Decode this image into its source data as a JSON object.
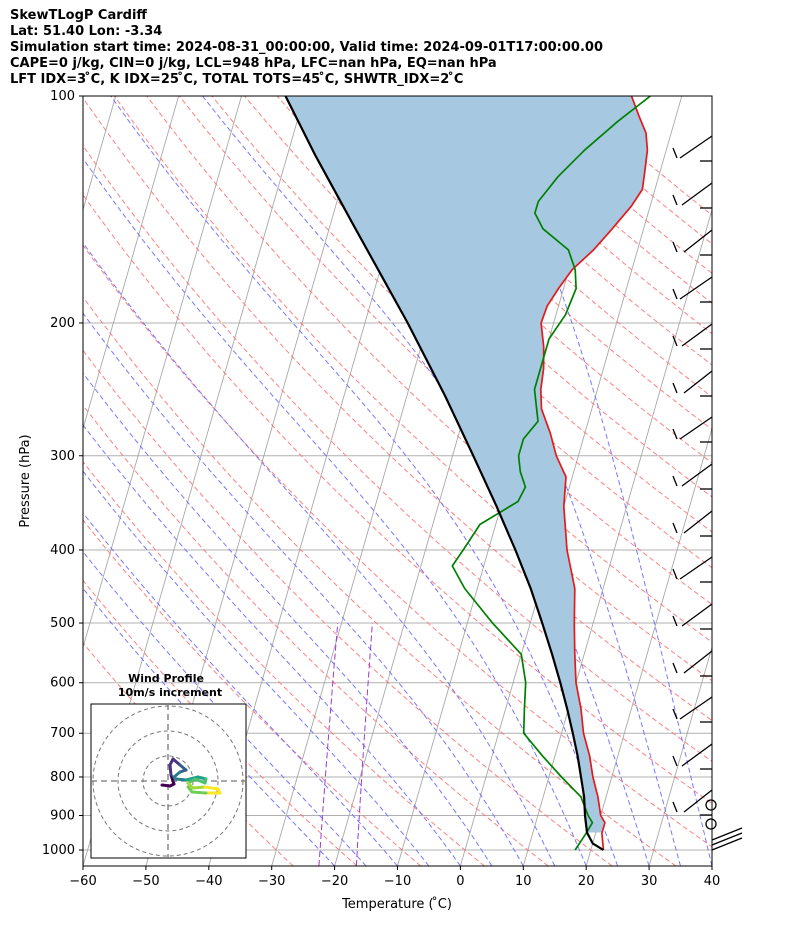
{
  "header": {
    "line1": "SkewTLogP Cardiff",
    "line2": "Lat: 51.40   Lon: -3.34",
    "line3": "Simulation start time: 2024-08-31_00:00:00, Valid time: 2024-09-01T17:00:00.00",
    "line4": "CAPE=0 j/kg, CIN=0 j/kg, LCL=948 hPa, LFC=nan hPa, EQ=nan hPa",
    "line5": "LFT IDX=3 ̊C, K IDX=25 ̊C, TOTAL TOTS=45 ̊C, SHWTR_IDX=2 ̊C"
  },
  "colors": {
    "temperature": "#e31a1c",
    "dewpoint": "#008000",
    "parcel": "#000000",
    "cape_fill": "#a6c8e0",
    "dry_adiabat": "#ff6b6b",
    "moist_adiabat": "#6a6aff",
    "mixing_ratio": "#9b3bd1",
    "isotherm": "#a8a8a8"
  },
  "chart_data": {
    "type": "line",
    "xlabel": "Temperature ( ̊C)",
    "ylabel": "Pressure (hPa)",
    "xlim": [
      -60,
      40
    ],
    "ylim": [
      1050,
      100
    ],
    "y_scale": "log",
    "grid": true,
    "x_ticks": [
      -60,
      -50,
      -40,
      -30,
      -20,
      -10,
      0,
      10,
      20,
      30,
      40
    ],
    "y_ticks": [
      1000,
      900,
      800,
      700,
      600,
      500,
      400,
      300,
      200,
      100
    ],
    "series": [
      {
        "key": "temperature",
        "points": [
          [
            1000,
            22
          ],
          [
            950,
            21
          ],
          [
            920,
            21
          ],
          [
            900,
            20
          ],
          [
            850,
            18.7
          ],
          [
            800,
            17
          ],
          [
            750,
            15.5
          ],
          [
            700,
            13.5
          ],
          [
            650,
            12
          ],
          [
            600,
            10
          ],
          [
            550,
            8.5
          ],
          [
            500,
            7
          ],
          [
            450,
            5.5
          ],
          [
            400,
            2.5
          ],
          [
            350,
            0
          ],
          [
            320,
            -1
          ],
          [
            300,
            -3.5
          ],
          [
            280,
            -5.5
          ],
          [
            260,
            -8
          ],
          [
            245,
            -9
          ],
          [
            230,
            -9.5
          ],
          [
            215,
            -10.5
          ],
          [
            200,
            -12
          ],
          [
            190,
            -11.8
          ],
          [
            180,
            -10.8
          ],
          [
            170,
            -9.5
          ],
          [
            160,
            -7
          ],
          [
            150,
            -5
          ],
          [
            140,
            -3
          ],
          [
            133,
            -2
          ],
          [
            125,
            -2.5
          ],
          [
            118,
            -3
          ],
          [
            112,
            -4
          ],
          [
            106,
            -6
          ],
          [
            100,
            -8
          ]
        ]
      },
      {
        "key": "dewpoint",
        "points": [
          [
            1000,
            17.5
          ],
          [
            950,
            18.5
          ],
          [
            920,
            19
          ],
          [
            900,
            18
          ],
          [
            850,
            16
          ],
          [
            800,
            12
          ],
          [
            750,
            8
          ],
          [
            700,
            4
          ],
          [
            650,
            3
          ],
          [
            600,
            2
          ],
          [
            550,
            0
          ],
          [
            500,
            -6
          ],
          [
            450,
            -12
          ],
          [
            420,
            -15
          ],
          [
            400,
            -14
          ],
          [
            370,
            -12.5
          ],
          [
            345,
            -7.5
          ],
          [
            330,
            -7
          ],
          [
            315,
            -8.5
          ],
          [
            300,
            -9.5
          ],
          [
            285,
            -9.5
          ],
          [
            270,
            -8
          ],
          [
            245,
            -10
          ],
          [
            225,
            -10
          ],
          [
            210,
            -10
          ],
          [
            195,
            -8.5
          ],
          [
            180,
            -8
          ],
          [
            170,
            -9
          ],
          [
            160,
            -11
          ],
          [
            150,
            -16
          ],
          [
            143,
            -18
          ],
          [
            138,
            -18
          ],
          [
            128,
            -16
          ],
          [
            118,
            -13
          ],
          [
            108,
            -9
          ],
          [
            100,
            -5
          ]
        ]
      },
      {
        "key": "parcel",
        "points": [
          [
            1000,
            22
          ],
          [
            980,
            20
          ],
          [
            948,
            18.6
          ],
          [
            900,
            17.5
          ],
          [
            850,
            16.5
          ],
          [
            800,
            15.1
          ],
          [
            750,
            13.6
          ],
          [
            700,
            11.8
          ],
          [
            650,
            9.8
          ],
          [
            600,
            7.5
          ],
          [
            550,
            4.9
          ],
          [
            500,
            1.9
          ],
          [
            450,
            -1.5
          ],
          [
            400,
            -5.7
          ],
          [
            350,
            -10.7
          ],
          [
            300,
            -16.7
          ],
          [
            250,
            -23.9
          ],
          [
            200,
            -33.2
          ],
          [
            150,
            -45.8
          ],
          [
            120,
            -55.5
          ],
          [
            100,
            -63
          ]
        ]
      }
    ],
    "hodograph": {
      "title": "Wind Profile",
      "subtitle": "10m/s increment",
      "rings": 3
    }
  }
}
